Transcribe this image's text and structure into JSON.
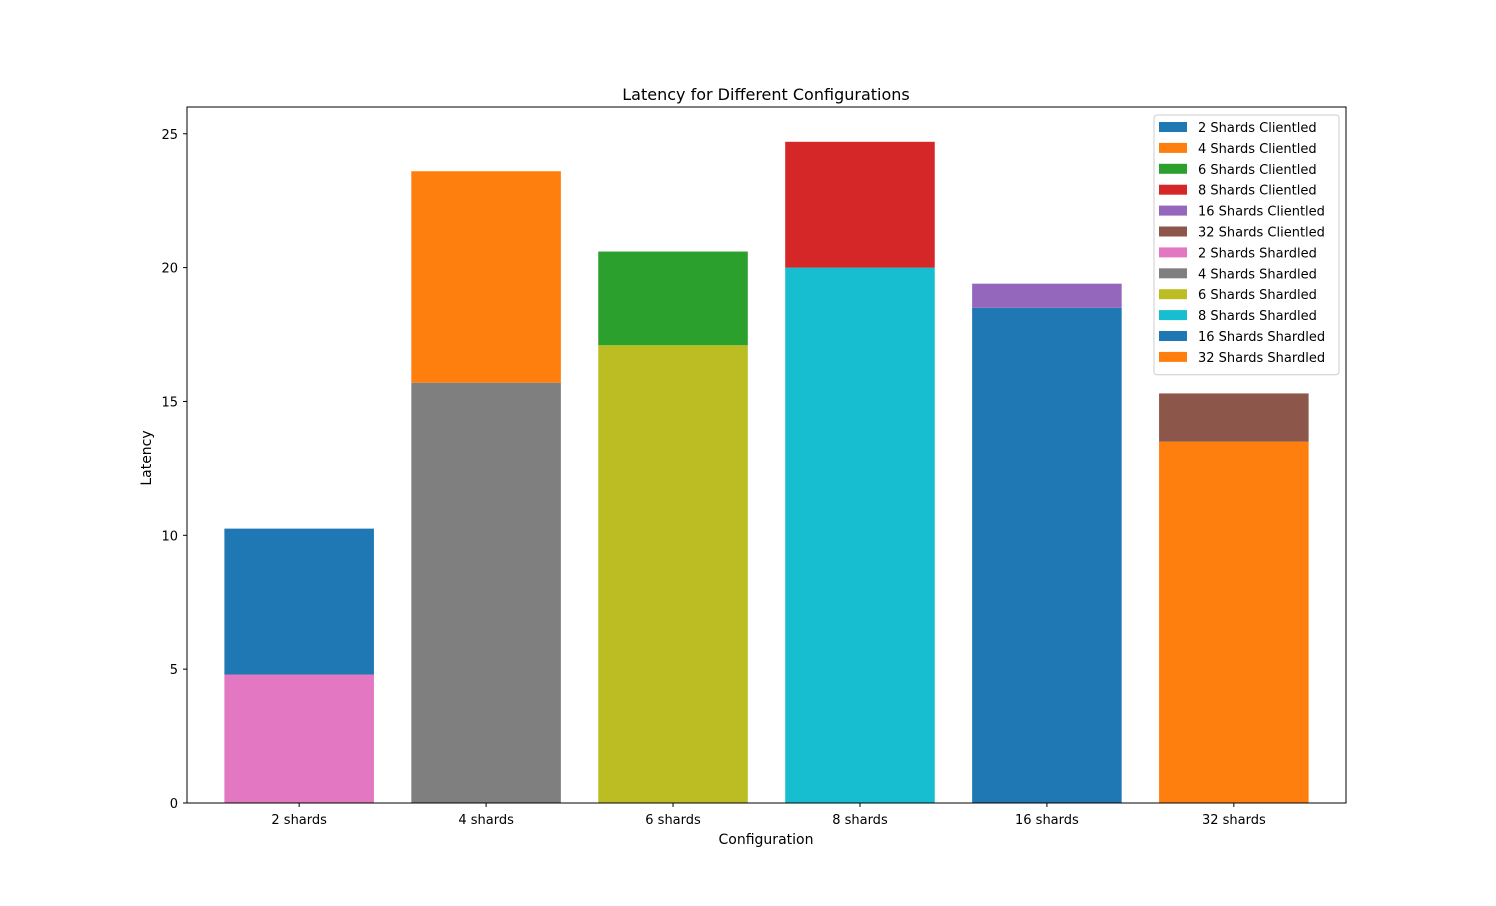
{
  "chart_data": {
    "type": "bar",
    "stacked": true,
    "title": "Latency for Different Configurations",
    "xlabel": "Configuration",
    "ylabel": "Latency",
    "ylim": [
      0,
      26
    ],
    "yticks": [
      0,
      5,
      10,
      15,
      20,
      25
    ],
    "grid": false,
    "legend_position": "top-right",
    "categories": [
      "2 shards",
      "4 shards",
      "6 shards",
      "8 shards",
      "16 shards",
      "32 shards"
    ],
    "bars": [
      {
        "category": "2 shards",
        "shardled": 4.8,
        "clientled": 10.25,
        "shardled_series": "2 Shards Shardled",
        "clientled_series": "2 Shards Clientled"
      },
      {
        "category": "4 shards",
        "shardled": 15.7,
        "clientled": 23.6,
        "shardled_series": "4 Shards Shardled",
        "clientled_series": "4 Shards Clientled"
      },
      {
        "category": "6 shards",
        "shardled": 17.1,
        "clientled": 20.6,
        "shardled_series": "6 Shards Shardled",
        "clientled_series": "6 Shards Clientled"
      },
      {
        "category": "8 shards",
        "shardled": 20.0,
        "clientled": 24.7,
        "shardled_series": "8 Shards Shardled",
        "clientled_series": "8 Shards Clientled"
      },
      {
        "category": "16 shards",
        "shardled": 18.5,
        "clientled": 19.4,
        "shardled_series": "16 Shards Shardled",
        "clientled_series": "16 Shards Clientled"
      },
      {
        "category": "32 shards",
        "shardled": 13.5,
        "clientled": 15.3,
        "shardled_series": "32 Shards Shardled",
        "clientled_series": "32 Shards Clientled"
      }
    ],
    "series": [
      {
        "name": "2 Shards Clientled",
        "color": "#1f77b4"
      },
      {
        "name": "4 Shards Clientled",
        "color": "#ff7f0e"
      },
      {
        "name": "6 Shards Clientled",
        "color": "#2ca02c"
      },
      {
        "name": "8 Shards Clientled",
        "color": "#d62728"
      },
      {
        "name": "16 Shards Clientled",
        "color": "#9467bd"
      },
      {
        "name": "32 Shards Clientled",
        "color": "#8c564b"
      },
      {
        "name": "2 Shards Shardled",
        "color": "#e377c2"
      },
      {
        "name": "4 Shards Shardled",
        "color": "#7f7f7f"
      },
      {
        "name": "6 Shards Shardled",
        "color": "#bcbd22"
      },
      {
        "name": "8 Shards Shardled",
        "color": "#17becf"
      },
      {
        "name": "16 Shards Shardled",
        "color": "#1f77b4"
      },
      {
        "name": "32 Shards Shardled",
        "color": "#ff7f0e"
      }
    ]
  }
}
